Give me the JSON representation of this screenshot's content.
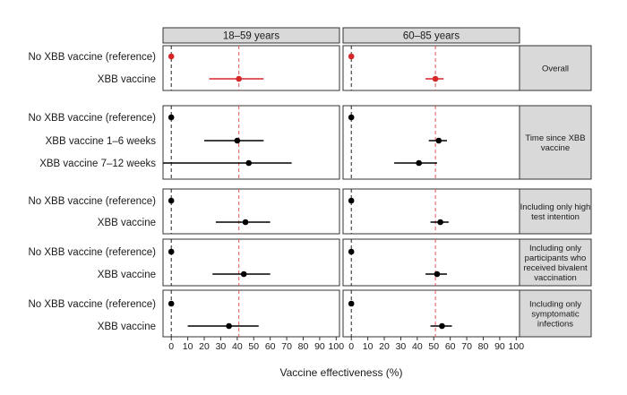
{
  "chart_data": {
    "type": "forest",
    "xlabel": "Vaccine effectiveness (%)",
    "xlim": [
      -5,
      102
    ],
    "x_ticks": [
      0,
      10,
      20,
      30,
      40,
      50,
      60,
      70,
      80,
      90,
      100
    ],
    "columns": [
      "18–59 years",
      "60–85 years"
    ],
    "reference_lines": [
      {
        "x": 0,
        "style": "dashed",
        "color": "#222222"
      },
      {
        "col": 0,
        "x": 41,
        "style": "dashed",
        "color": "#e05555"
      },
      {
        "col": 1,
        "x": 51,
        "style": "dashed",
        "color": "#e05555"
      }
    ],
    "panels": [
      {
        "label_lines": [
          "Overall"
        ],
        "color": "#d62728",
        "rows": [
          {
            "label": "No XBB vaccine (reference)",
            "est": [
              0,
              0
            ],
            "ci": [
              [
                0,
                0
              ],
              [
                0,
                0
              ]
            ]
          },
          {
            "label": "XBB vaccine",
            "est": [
              41,
              51
            ],
            "ci": [
              [
                23,
                56
              ],
              [
                45,
                56
              ]
            ]
          }
        ]
      },
      {
        "label_lines": [
          "Time since XBB",
          "vaccine"
        ],
        "color": "#000000",
        "rows": [
          {
            "label": "No XBB vaccine (reference)",
            "est": [
              0,
              0
            ],
            "ci": [
              [
                0,
                0
              ],
              [
                0,
                0
              ]
            ]
          },
          {
            "label": "XBB vaccine 1–6 weeks",
            "est": [
              40,
              53
            ],
            "ci": [
              [
                20,
                56
              ],
              [
                47,
                58
              ]
            ]
          },
          {
            "label": "XBB vaccine 7–12 weeks",
            "est": [
              47,
              41
            ],
            "ci": [
              [
                -5,
                73
              ],
              [
                26,
                52
              ]
            ]
          }
        ]
      },
      {
        "label_lines": [
          "Including only high",
          "test intention"
        ],
        "color": "#000000",
        "rows": [
          {
            "label": "No XBB vaccine (reference)",
            "est": [
              0,
              0
            ],
            "ci": [
              [
                0,
                0
              ],
              [
                0,
                0
              ]
            ]
          },
          {
            "label": "XBB vaccine",
            "est": [
              45,
              54
            ],
            "ci": [
              [
                27,
                60
              ],
              [
                48,
                59
              ]
            ]
          }
        ]
      },
      {
        "label_lines": [
          "Including only",
          "participants who",
          "received bivalent",
          "vaccination"
        ],
        "color": "#000000",
        "rows": [
          {
            "label": "No XBB vaccine (reference)",
            "est": [
              0,
              0
            ],
            "ci": [
              [
                0,
                0
              ],
              [
                0,
                0
              ]
            ]
          },
          {
            "label": "XBB vaccine",
            "est": [
              44,
              52
            ],
            "ci": [
              [
                25,
                60
              ],
              [
                45,
                58
              ]
            ]
          }
        ]
      },
      {
        "label_lines": [
          "Including only",
          "symptomatic",
          "infections"
        ],
        "color": "#000000",
        "rows": [
          {
            "label": "No XBB vaccine (reference)",
            "est": [
              0,
              0
            ],
            "ci": [
              [
                0,
                0
              ],
              [
                0,
                0
              ]
            ]
          },
          {
            "label": "XBB vaccine",
            "est": [
              35,
              55
            ],
            "ci": [
              [
                10,
                53
              ],
              [
                48,
                61
              ]
            ]
          }
        ]
      }
    ]
  }
}
